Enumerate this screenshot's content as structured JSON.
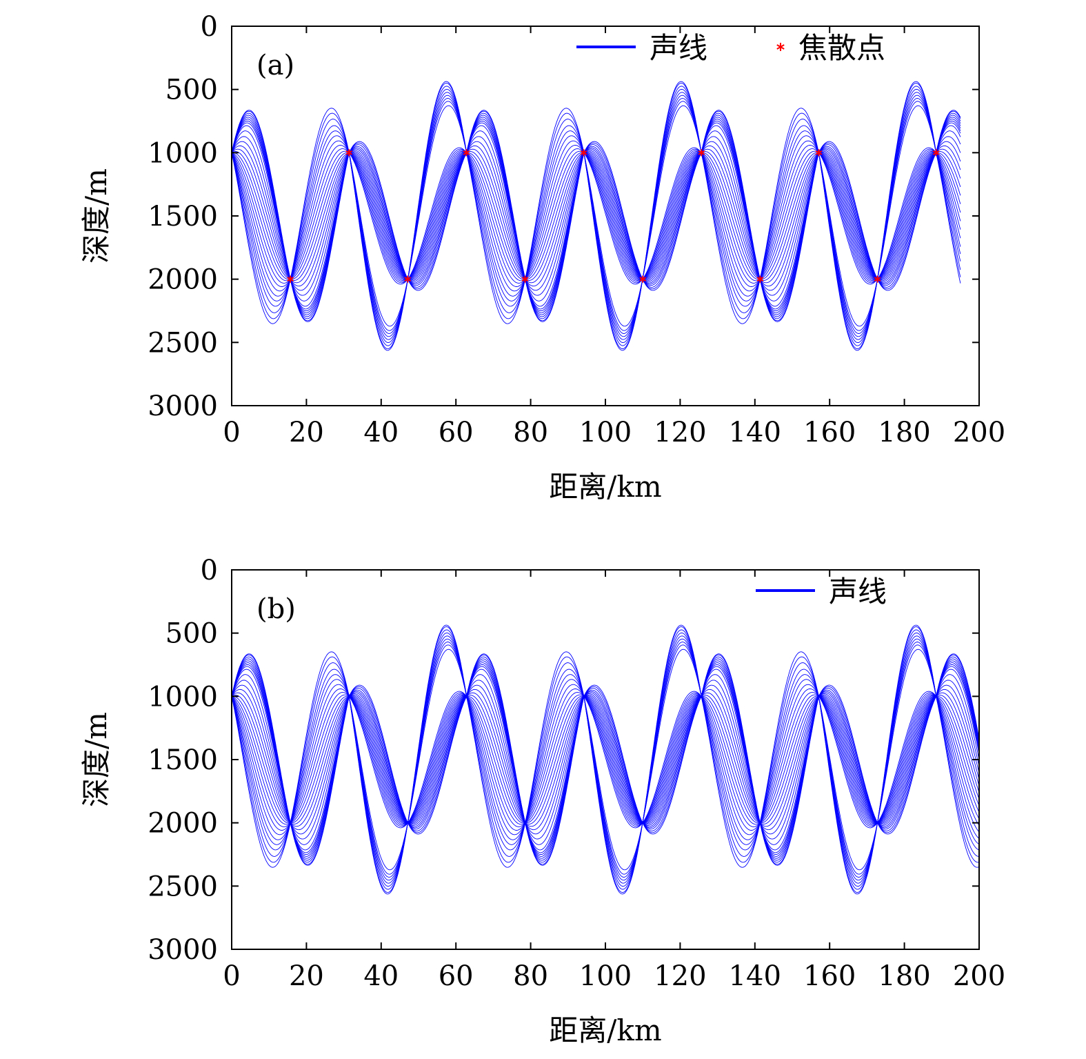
{
  "chart_data": [
    {
      "type": "line",
      "panel_label": "(a)",
      "xlabel": "距离/km",
      "ylabel": "深度/m",
      "xlim": [
        0,
        200
      ],
      "ylim": [
        3000,
        0
      ],
      "xticks": [
        0,
        20,
        40,
        60,
        80,
        100,
        120,
        140,
        160,
        180,
        200
      ],
      "yticks": [
        0,
        500,
        1000,
        1500,
        2000,
        2500,
        3000
      ],
      "x_max_rays": 195,
      "legend": {
        "placement": "top-right",
        "entries": [
          {
            "label": "声线",
            "marker": "line",
            "color": "#0000ff"
          },
          {
            "label": "焦散点",
            "marker": "asterisk",
            "color": "#ff0000"
          }
        ]
      },
      "ray_color": "#0000ff",
      "source_depth": 1000,
      "rays_downgoing": {
        "turn_depths": [
          1550,
          1620,
          1690,
          1760,
          1830,
          1900,
          1970,
          2040,
          2110,
          2180,
          2250,
          2320,
          2390,
          2450,
          2510,
          2580,
          2640,
          2690
        ],
        "turn_range_km": [
          2.5,
          10
        ]
      },
      "rays_upgoing": {
        "turn_depths": [
          490,
          460,
          440,
          420,
          400,
          380,
          360,
          340,
          330
        ],
        "turn_range_km": [
          26,
          26
        ]
      },
      "series": [
        {
          "name": "焦散点",
          "type": "scatter",
          "color": "#ff0000",
          "points": [
            {
              "x": 15.7,
              "y": 2000
            },
            {
              "x": 31.4,
              "y": 1000
            },
            {
              "x": 47.1,
              "y": 2000
            },
            {
              "x": 62.8,
              "y": 1000
            },
            {
              "x": 78.5,
              "y": 2000
            },
            {
              "x": 94.2,
              "y": 1000
            },
            {
              "x": 110.0,
              "y": 2000
            },
            {
              "x": 125.7,
              "y": 1000
            },
            {
              "x": 141.4,
              "y": 2000
            },
            {
              "x": 157.1,
              "y": 1000
            },
            {
              "x": 172.8,
              "y": 2000
            },
            {
              "x": 188.5,
              "y": 1000
            }
          ]
        }
      ]
    },
    {
      "type": "line",
      "panel_label": "(b)",
      "xlabel": "距离/km",
      "ylabel": "深度/m",
      "xlim": [
        0,
        200
      ],
      "ylim": [
        3000,
        0
      ],
      "xticks": [
        0,
        20,
        40,
        60,
        80,
        100,
        120,
        140,
        160,
        180,
        200
      ],
      "yticks": [
        0,
        500,
        1000,
        1500,
        2000,
        2500,
        3000
      ],
      "x_max_rays": 200,
      "legend": {
        "placement": "top-right",
        "entries": [
          {
            "label": "声线",
            "marker": "line",
            "color": "#0000ff"
          }
        ]
      },
      "ray_color": "#0000ff",
      "source_depth": 1000,
      "rays_downgoing": {
        "turn_depths": [
          1550,
          1620,
          1690,
          1760,
          1830,
          1900,
          1970,
          2040,
          2110,
          2180,
          2250,
          2320,
          2390,
          2450,
          2510,
          2580,
          2640,
          2690
        ],
        "turn_range_km": [
          2.5,
          10
        ]
      },
      "rays_upgoing": {
        "turn_depths": [
          490,
          460,
          440,
          420,
          400,
          380,
          360,
          340,
          330
        ],
        "turn_range_km": [
          26,
          26
        ]
      }
    }
  ]
}
